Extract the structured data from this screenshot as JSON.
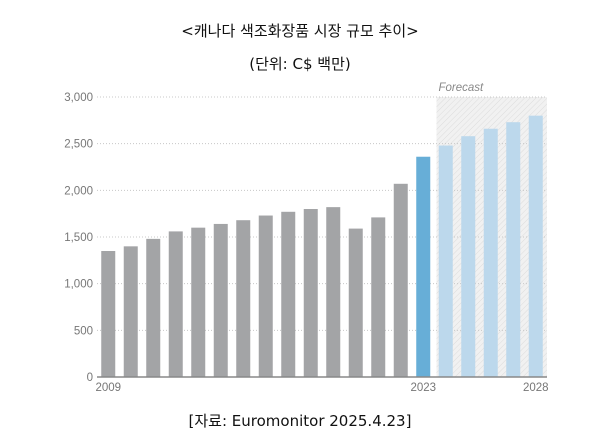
{
  "chart_data": {
    "type": "bar",
    "title": "<캐나다 색조화장품 시장 규모 추이>",
    "subtitle": "(단위: C$ 백만)",
    "source": "[자료: Euromonitor 2025.4.23]",
    "xlabel": "",
    "ylabel": "",
    "ylim": [
      0,
      3000
    ],
    "yticks": [
      0,
      500,
      1000,
      1500,
      2000,
      2500,
      3000
    ],
    "ytick_labels": [
      "0",
      "500",
      "1,000",
      "1,500",
      "2,000",
      "2,500",
      "3,000"
    ],
    "grid": true,
    "categories": [
      2009,
      2010,
      2011,
      2012,
      2013,
      2014,
      2015,
      2016,
      2017,
      2018,
      2019,
      2020,
      2021,
      2022,
      2023,
      2024,
      2025,
      2026,
      2027,
      2028
    ],
    "xtick_labels": {
      "2009": "2009",
      "2023": "2023",
      "2028": "2028"
    },
    "values": [
      1350,
      1400,
      1480,
      1560,
      1600,
      1640,
      1680,
      1730,
      1770,
      1800,
      1820,
      1590,
      1710,
      2070,
      2360,
      2480,
      2580,
      2660,
      2730,
      2800
    ],
    "forecast_label": "Forecast",
    "forecast_from": 2024,
    "highlight": 2023,
    "colors": {
      "historical": "#a3a4a6",
      "current": "#67aed7",
      "forecast": "#bcd8ec",
      "forecast_bg": "#eeeeee"
    }
  }
}
